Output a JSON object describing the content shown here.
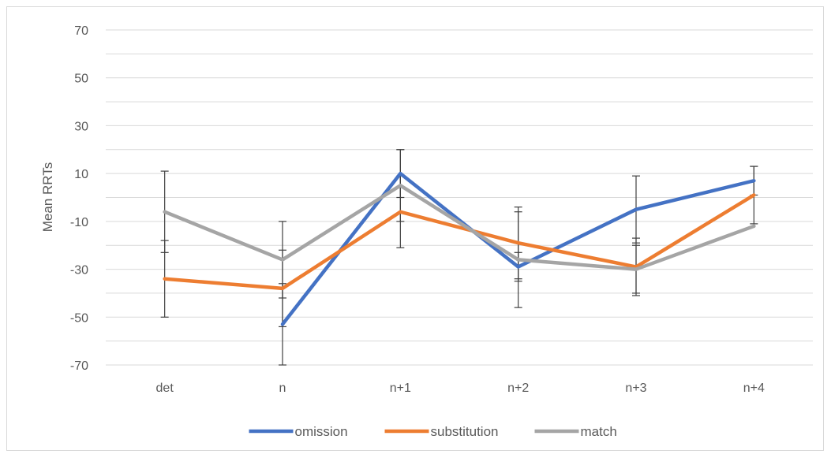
{
  "chart_data": {
    "type": "line",
    "title": "",
    "xlabel": "",
    "ylabel": "Mean RRTs",
    "ylim": [
      -70,
      70
    ],
    "yticks": [
      70,
      50,
      30,
      10,
      -10,
      -30,
      -50,
      -70
    ],
    "grid": true,
    "legend_position": "bottom",
    "categories": [
      "det",
      "n",
      "n+1",
      "n+2",
      "n+3",
      "n+4"
    ],
    "series": [
      {
        "name": "omission",
        "color": "#4472c4",
        "values": [
          null,
          -53,
          10,
          -29,
          -5,
          7
        ],
        "error": [
          null,
          17,
          10,
          6,
          14,
          6
        ]
      },
      {
        "name": "substitution",
        "color": "#ed7d31",
        "values": [
          -34,
          -38,
          -6,
          -19,
          -29,
          1
        ],
        "error": [
          16,
          16,
          15,
          15,
          12,
          12
        ]
      },
      {
        "name": "match",
        "color": "#a5a5a5",
        "values": [
          -6,
          -26,
          5,
          -26,
          -30,
          -12
        ],
        "error": [
          17,
          16,
          15,
          20,
          10,
          0
        ]
      }
    ]
  }
}
